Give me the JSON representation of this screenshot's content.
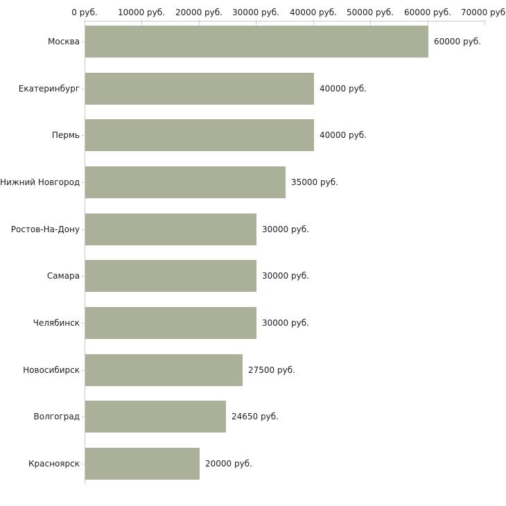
{
  "chart_data": {
    "type": "bar",
    "orientation": "horizontal",
    "title": "",
    "xlabel": "",
    "ylabel": "",
    "categories": [
      "Москва",
      "Екатеринбург",
      "Пермь",
      "Нижний Новгород",
      "Ростов-На-Дону",
      "Самара",
      "Челябинск",
      "Новосибирск",
      "Волгоград",
      "Красноярск"
    ],
    "values": [
      60000,
      40000,
      40000,
      35000,
      30000,
      30000,
      30000,
      27500,
      24650,
      20000
    ],
    "bar_labels": [
      "60000 руб.",
      "40000 руб.",
      "40000 руб.",
      "35000 руб.",
      "30000 руб.",
      "30000 руб.",
      "30000 руб.",
      "27500 руб.",
      "24650 руб.",
      "20000 руб."
    ],
    "x_tick_labels": [
      "0 руб.",
      "10000 руб.",
      "20000 руб.",
      "30000 руб.",
      "40000 руб.",
      "50000 руб.",
      "60000 руб.",
      "70000 руб."
    ],
    "xlim": [
      0,
      70000
    ],
    "x_tick_step": 10000,
    "grid": false,
    "legend": false,
    "colors": {
      "bar": "#aab198",
      "axis_line": "#c8c8c8",
      "tick": "#d4d6b4",
      "text": "#1c1c1c",
      "background": "#ffffff"
    }
  }
}
